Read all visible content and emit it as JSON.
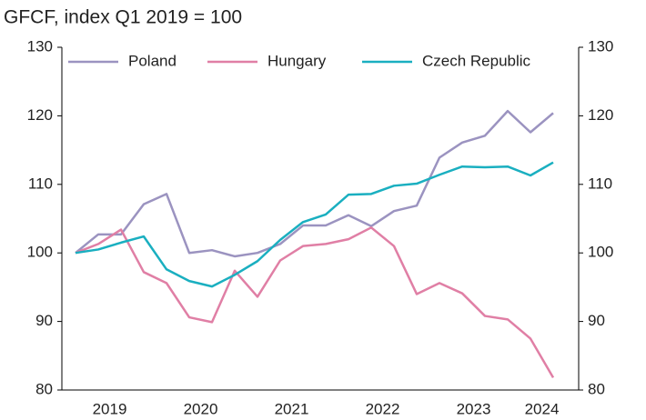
{
  "chart_data": {
    "type": "line",
    "title": "GFCF, index Q1 2019 = 100",
    "categories": [
      null,
      "2019",
      null,
      null,
      null,
      "2020",
      null,
      null,
      null,
      "2021",
      null,
      null,
      null,
      "2022",
      null,
      null,
      null,
      "2023",
      null,
      null,
      "2024",
      null
    ],
    "series": [
      {
        "name": "Poland",
        "color": "#9b93c0",
        "values": [
          100,
          102.7,
          102.7,
          107.1,
          108.6,
          100,
          100.4,
          99.5,
          100,
          101.3,
          104,
          104,
          105.5,
          103.9,
          106.1,
          106.9,
          113.9,
          116.1,
          117.1,
          120.7,
          117.6,
          120.4
        ]
      },
      {
        "name": "Hungary",
        "color": "#e07fa5",
        "values": [
          100,
          101.3,
          103.4,
          97.2,
          95.6,
          90.6,
          89.9,
          97.4,
          93.6,
          98.9,
          101,
          101.3,
          102,
          103.7,
          101,
          94,
          95.6,
          94.1,
          90.8,
          90.3,
          87.5,
          81.8
        ]
      },
      {
        "name": "Czech Republic",
        "color": "#1aafc0",
        "values": [
          100,
          100.5,
          101.5,
          102.4,
          97.6,
          95.9,
          95.1,
          96.8,
          98.8,
          101.9,
          104.5,
          105.6,
          108.5,
          108.6,
          109.8,
          110.1,
          111.4,
          112.6,
          112.5,
          112.6,
          111.3,
          113.2
        ]
      }
    ],
    "ylim": [
      80,
      130
    ],
    "yticks": [
      80,
      90,
      100,
      110,
      120,
      130
    ],
    "y2lim": [
      80,
      130
    ],
    "y2ticks": [
      80,
      90,
      100,
      110,
      120,
      130
    ],
    "legend": "top"
  }
}
